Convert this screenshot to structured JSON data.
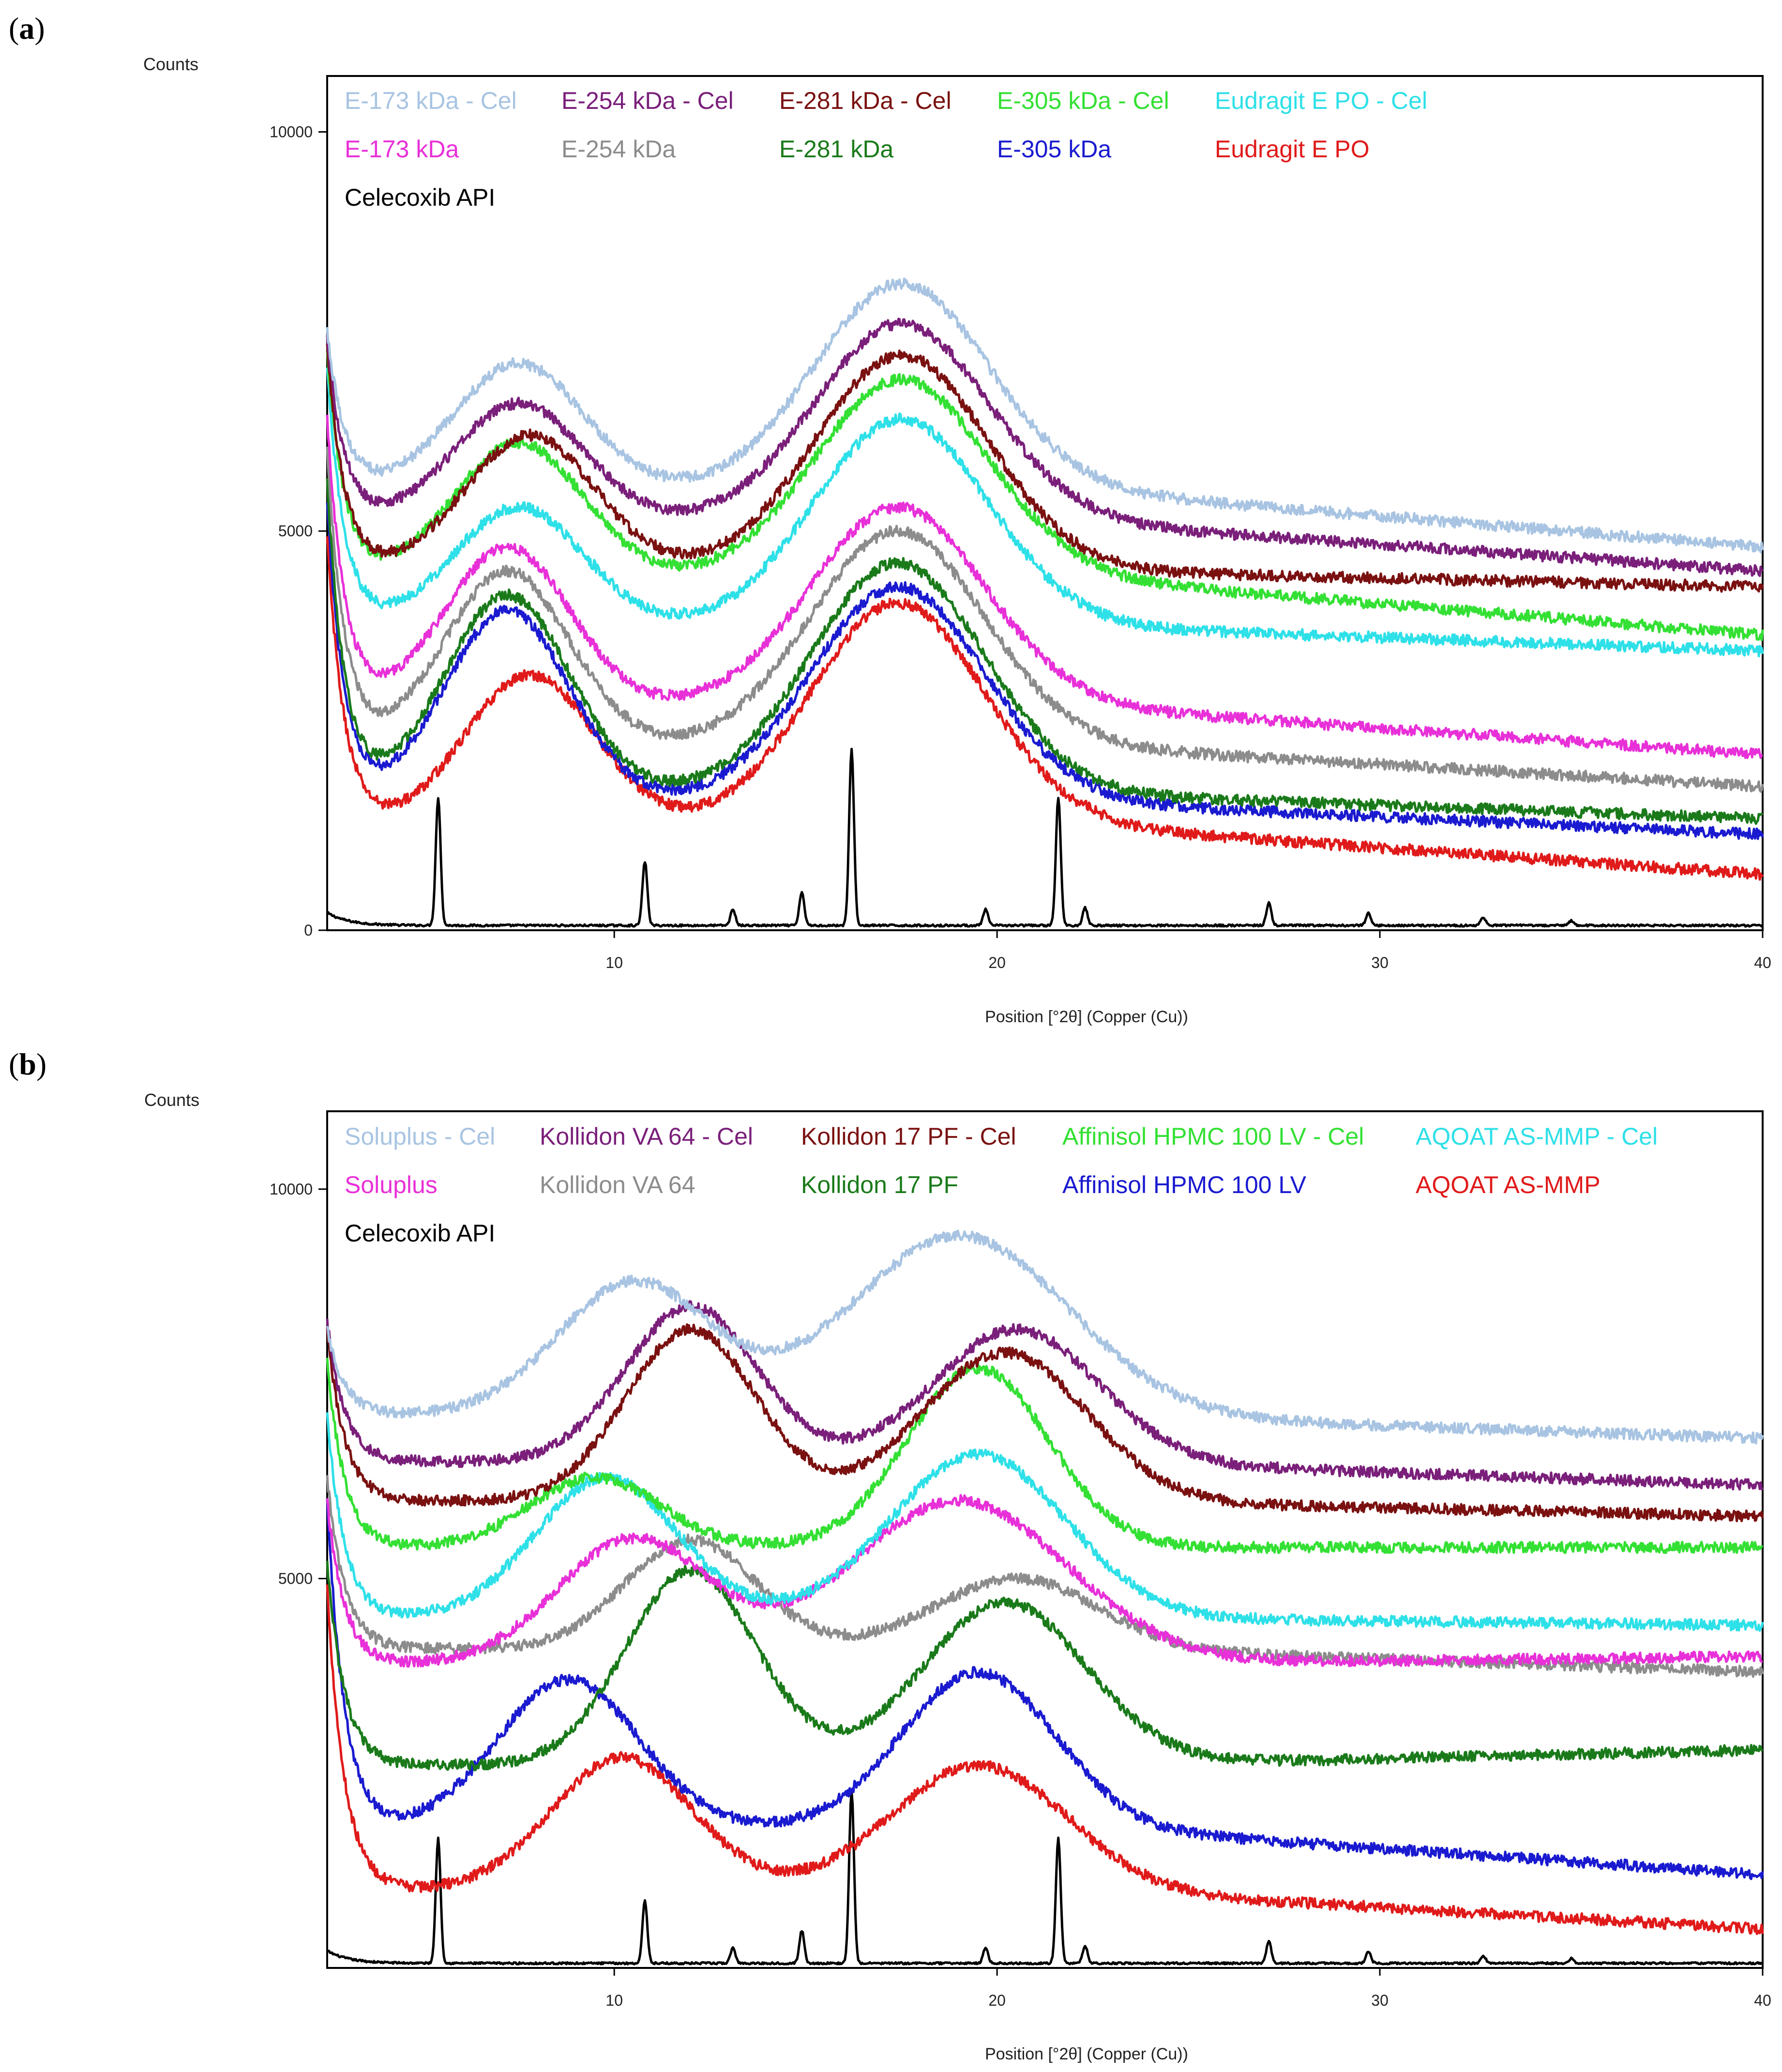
{
  "chart_data": [
    {
      "panel_label": "(a)",
      "type": "line",
      "ylabel": "Counts",
      "xlabel": "Position [°2θ] (Copper (Cu))",
      "xlim": [
        2.5,
        40
      ],
      "ylim": [
        0,
        10700
      ],
      "xticks": [
        10,
        20,
        30,
        40
      ],
      "yticks": [
        0,
        5000,
        10000
      ],
      "series": [
        {
          "name": "E-173 kDa - Cel",
          "color": "#a8c4e2",
          "base": 5500,
          "amp1": 1600,
          "c1": 7.5,
          "w1": 2.4,
          "amp2": 2600,
          "c2": 17.5,
          "w2": 3.2,
          "tail": 4800,
          "start": 7500,
          "noise": 70
        },
        {
          "name": "E-254 kDa - Cel",
          "color": "#7a1f7a",
          "base": 5100,
          "amp1": 1500,
          "c1": 7.5,
          "w1": 2.4,
          "amp2": 2500,
          "c2": 17.5,
          "w2": 3.2,
          "tail": 4500,
          "start": 7400,
          "noise": 70
        },
        {
          "name": "E-281 kDa - Cel",
          "color": "#7a1010",
          "base": 4500,
          "amp1": 1700,
          "c1": 7.8,
          "w1": 2.4,
          "amp2": 2700,
          "c2": 17.5,
          "w2": 3.2,
          "tail": 4300,
          "start": 7300,
          "noise": 70
        },
        {
          "name": "E-305 kDa - Cel",
          "color": "#33e033",
          "base": 4400,
          "amp1": 1700,
          "c1": 7.5,
          "w1": 2.4,
          "amp2": 2500,
          "c2": 17.5,
          "w2": 3.2,
          "tail": 3700,
          "start": 7200,
          "noise": 70
        },
        {
          "name": "Eudragit E PO - Cel",
          "color": "#2ee0e8",
          "base": 3800,
          "amp1": 1500,
          "c1": 7.5,
          "w1": 2.4,
          "amp2": 2600,
          "c2": 17.5,
          "w2": 3.2,
          "tail": 3500,
          "start": 7000,
          "noise": 70
        },
        {
          "name": "E-173 kDa",
          "color": "#e830d8",
          "base": 2800,
          "amp1": 2000,
          "c1": 7.2,
          "w1": 2.3,
          "amp2": 2500,
          "c2": 17.4,
          "w2": 3.2,
          "tail": 2200,
          "start": 6400,
          "noise": 70
        },
        {
          "name": "E-254 kDa",
          "color": "#8c8c8c",
          "base": 2300,
          "amp1": 2200,
          "c1": 7.2,
          "w1": 2.3,
          "amp2": 2700,
          "c2": 17.4,
          "w2": 3.2,
          "tail": 1800,
          "start": 6000,
          "noise": 70
        },
        {
          "name": "E-281 kDa",
          "color": "#1a7a1a",
          "base": 1700,
          "amp1": 2500,
          "c1": 7.2,
          "w1": 2.3,
          "amp2": 2900,
          "c2": 17.4,
          "w2": 3.2,
          "tail": 1400,
          "start": 5600,
          "noise": 70
        },
        {
          "name": "E-305 kDa",
          "color": "#1a1ad0",
          "base": 1600,
          "amp1": 2400,
          "c1": 7.2,
          "w1": 2.3,
          "amp2": 2700,
          "c2": 17.4,
          "w2": 3.2,
          "tail": 1200,
          "start": 5300,
          "noise": 70
        },
        {
          "name": "Eudragit E PO",
          "color": "#e01a1a",
          "base": 1300,
          "amp1": 1900,
          "c1": 7.8,
          "w1": 2.4,
          "amp2": 2800,
          "c2": 17.4,
          "w2": 3.2,
          "tail": 700,
          "start": 4900,
          "noise": 70
        },
        {
          "name": "Celecoxib API",
          "color": "#000000",
          "type": "peaks",
          "baseline": 60,
          "peaks": [
            [
              5.4,
              1600
            ],
            [
              10.8,
              800
            ],
            [
              13.1,
              200
            ],
            [
              14.9,
              420
            ],
            [
              16.2,
              2200
            ],
            [
              19.7,
              200
            ],
            [
              21.6,
              1600
            ],
            [
              22.3,
              220
            ],
            [
              27.1,
              280
            ],
            [
              29.7,
              150
            ],
            [
              32.7,
              100
            ],
            [
              35.0,
              60
            ]
          ]
        }
      ]
    },
    {
      "panel_label": "(b)",
      "type": "line",
      "ylabel": "Counts",
      "xlabel": "Position [°2θ] (Copper (Cu))",
      "xlim": [
        2.5,
        40
      ],
      "ylim": [
        0,
        11000
      ],
      "xticks": [
        10,
        20,
        30,
        40
      ],
      "yticks": [
        5000,
        10000
      ],
      "series": [
        {
          "name": "Soluplus - Cel",
          "color": "#a8c4e2",
          "base": 7100,
          "amp1": 1700,
          "c1": 10.5,
          "w1": 2.8,
          "amp2": 2300,
          "c2": 19.0,
          "w2": 4.0,
          "tail": 6800,
          "start": 8200,
          "noise": 70
        },
        {
          "name": "Kollidon VA 64 - Cel",
          "color": "#7a1f7a",
          "base": 6500,
          "amp1": 2000,
          "c1": 12.0,
          "w1": 2.4,
          "amp2": 1700,
          "c2": 20.5,
          "w2": 3.0,
          "tail": 6200,
          "start": 8300,
          "noise": 70
        },
        {
          "name": "Kollidon 17 PF - Cel",
          "color": "#7a1010",
          "base": 6000,
          "amp1": 2200,
          "c1": 12.0,
          "w1": 2.4,
          "amp2": 1900,
          "c2": 20.2,
          "w2": 3.0,
          "tail": 5800,
          "start": 8200,
          "noise": 70
        },
        {
          "name": "Affinisol HPMC 100 LV - Cel",
          "color": "#33e033",
          "base": 5400,
          "amp1": 900,
          "c1": 9.5,
          "w1": 2.4,
          "amp2": 2300,
          "c2": 19.5,
          "w2": 2.6,
          "tail": 5400,
          "start": 7800,
          "noise": 70
        },
        {
          "name": "AQOAT AS-MMP - Cel",
          "color": "#2ee0e8",
          "base": 4500,
          "amp1": 1800,
          "c1": 9.8,
          "w1": 2.6,
          "amp2": 2100,
          "c2": 19.5,
          "w2": 3.2,
          "tail": 4400,
          "start": 7100,
          "noise": 70
        },
        {
          "name": "Soluplus",
          "color": "#e830d8",
          "base": 3900,
          "amp1": 1600,
          "c1": 10.5,
          "w1": 2.8,
          "amp2": 2100,
          "c2": 19.0,
          "w2": 4.0,
          "tail": 4000,
          "start": 6000,
          "noise": 70
        },
        {
          "name": "Kollidon VA 64",
          "color": "#8c8c8c",
          "base": 4100,
          "amp1": 1400,
          "c1": 12.0,
          "w1": 2.4,
          "amp2": 900,
          "c2": 20.5,
          "w2": 3.0,
          "tail": 3800,
          "start": 6300,
          "noise": 70
        },
        {
          "name": "Kollidon 17 PF",
          "color": "#1a7a1a",
          "base": 2600,
          "amp1": 2500,
          "c1": 12.0,
          "w1": 2.4,
          "amp2": 2100,
          "c2": 20.2,
          "w2": 3.0,
          "tail": 2800,
          "start": 5200,
          "noise": 70
        },
        {
          "name": "Affinisol HPMC 100 LV",
          "color": "#1a1ad0",
          "base": 1800,
          "amp1": 1900,
          "c1": 8.8,
          "w1": 2.6,
          "amp2": 2000,
          "c2": 19.5,
          "w2": 2.8,
          "tail": 1200,
          "start": 6000,
          "noise": 70
        },
        {
          "name": "AQOAT AS-MMP",
          "color": "#e01a1a",
          "base": 1000,
          "amp1": 1700,
          "c1": 10.2,
          "w1": 2.6,
          "amp2": 1600,
          "c2": 19.5,
          "w2": 3.2,
          "tail": 500,
          "start": 4900,
          "noise": 70
        },
        {
          "name": "Celecoxib API",
          "color": "#000000",
          "type": "peaks",
          "baseline": 60,
          "peaks": [
            [
              5.4,
              1600
            ],
            [
              10.8,
              800
            ],
            [
              13.1,
              200
            ],
            [
              14.9,
              420
            ],
            [
              16.2,
              2200
            ],
            [
              19.7,
              200
            ],
            [
              21.6,
              1600
            ],
            [
              22.3,
              220
            ],
            [
              27.1,
              280
            ],
            [
              29.7,
              150
            ],
            [
              32.7,
              100
            ],
            [
              35.0,
              60
            ]
          ]
        }
      ]
    }
  ]
}
